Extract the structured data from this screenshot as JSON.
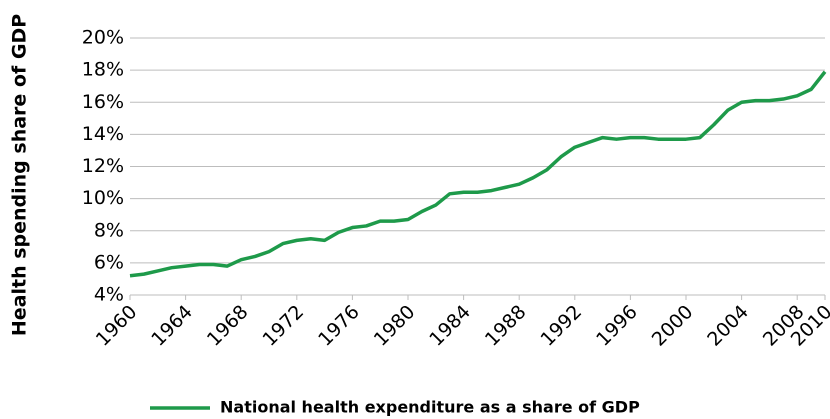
{
  "chart_data": {
    "type": "line",
    "y_label": "Health spending share of GDP",
    "x": [
      1960,
      1961,
      1962,
      1963,
      1964,
      1965,
      1966,
      1967,
      1968,
      1969,
      1970,
      1971,
      1972,
      1973,
      1974,
      1975,
      1976,
      1977,
      1978,
      1979,
      1980,
      1981,
      1982,
      1983,
      1984,
      1985,
      1986,
      1987,
      1988,
      1989,
      1990,
      1991,
      1992,
      1993,
      1994,
      1995,
      1996,
      1997,
      1998,
      1999,
      2000,
      2001,
      2002,
      2003,
      2004,
      2005,
      2006,
      2007,
      2008,
      2009,
      2010
    ],
    "series": [
      {
        "name": "National health expenditure as a share of GDP",
        "color": "#1e9a4a",
        "values": [
          5.2,
          5.3,
          5.5,
          5.7,
          5.8,
          5.9,
          5.9,
          5.8,
          6.2,
          6.4,
          6.7,
          7.2,
          7.4,
          7.5,
          7.4,
          7.9,
          8.2,
          8.3,
          8.6,
          8.6,
          8.7,
          9.2,
          9.6,
          10.3,
          10.4,
          10.4,
          10.5,
          10.7,
          10.9,
          11.3,
          11.8,
          12.6,
          13.2,
          13.5,
          13.8,
          13.7,
          13.8,
          13.8,
          13.7,
          13.7,
          13.7,
          13.8,
          14.6,
          15.5,
          16.0,
          16.1,
          16.1,
          16.2,
          16.4,
          16.8,
          17.9
        ]
      }
    ],
    "xlim": [
      1960,
      2010
    ],
    "xticks": [
      1960,
      1964,
      1968,
      1972,
      1976,
      1980,
      1984,
      1988,
      1992,
      1996,
      2000,
      2004,
      2008,
      2010
    ],
    "ylim": [
      4,
      20
    ],
    "yticks": [
      {
        "value": 4,
        "label": "4%"
      },
      {
        "value": 6,
        "label": "6%"
      },
      {
        "value": 8,
        "label": "8%"
      },
      {
        "value": 10,
        "label": "10%"
      },
      {
        "value": 12,
        "label": "12%"
      },
      {
        "value": 14,
        "label": "14%"
      },
      {
        "value": 16,
        "label": "16%"
      },
      {
        "value": 18,
        "label": "18%"
      },
      {
        "value": 20,
        "label": "20%"
      }
    ],
    "grid": true
  }
}
